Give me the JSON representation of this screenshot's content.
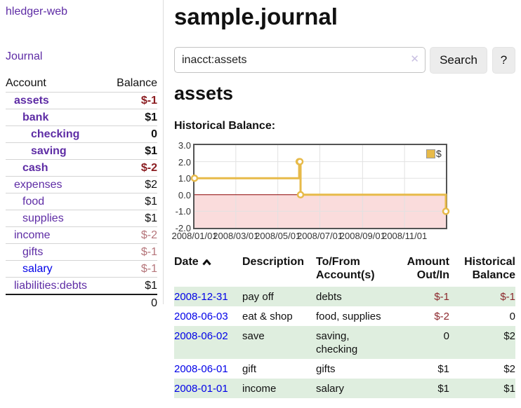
{
  "brand": "hledger-web",
  "nav": {
    "journal": "Journal"
  },
  "sidebar": {
    "header": {
      "account": "Account",
      "balance": "Balance"
    },
    "accounts": [
      {
        "name": "assets",
        "balance": "$-1"
      },
      {
        "name": "bank",
        "balance": "$1"
      },
      {
        "name": "checking",
        "balance": "0"
      },
      {
        "name": "saving",
        "balance": "$1"
      },
      {
        "name": "cash",
        "balance": "$-2"
      },
      {
        "name": "expenses",
        "balance": "$2"
      },
      {
        "name": "food",
        "balance": "$1"
      },
      {
        "name": "supplies",
        "balance": "$1"
      },
      {
        "name": "income",
        "balance": "$-2"
      },
      {
        "name": "gifts",
        "balance": "$-1"
      },
      {
        "name": "salary",
        "balance": "$-1"
      },
      {
        "name": "liabilities:debts",
        "balance": "$1"
      }
    ],
    "total": "0"
  },
  "header": {
    "title": "sample.journal"
  },
  "search": {
    "value": "inacct:assets",
    "clear_icon": "✕",
    "search_label": "Search",
    "help_label": "?"
  },
  "register": {
    "heading": "assets",
    "chart_title": "Historical Balance:",
    "table": {
      "headers": {
        "date": "Date",
        "description": "Description",
        "tofrom": "To/From Account(s)",
        "amount": "Amount Out/In",
        "balance": "Historical Balance"
      },
      "rows": [
        {
          "date": "2008-12-31",
          "description": "pay off",
          "tofrom": "debts",
          "amount": "$-1",
          "balance": "$-1"
        },
        {
          "date": "2008-06-03",
          "description": "eat & shop",
          "tofrom": "food, supplies",
          "amount": "$-2",
          "balance": "0"
        },
        {
          "date": "2008-06-02",
          "description": "save",
          "tofrom": "saving, checking",
          "amount": "0",
          "balance": "$2"
        },
        {
          "date": "2008-06-01",
          "description": "gift",
          "tofrom": "gifts",
          "amount": "$1",
          "balance": "$2"
        },
        {
          "date": "2008-01-01",
          "description": "income",
          "tofrom": "salary",
          "amount": "$1",
          "balance": "$1"
        }
      ]
    }
  },
  "chart_data": {
    "type": "line",
    "step": true,
    "title": "Historical Balance",
    "series": [
      {
        "name": "$",
        "color": "#e7ba49",
        "points": [
          [
            "2008-01-01",
            1
          ],
          [
            "2008-06-01",
            2
          ],
          [
            "2008-06-02",
            2
          ],
          [
            "2008-06-03",
            0
          ],
          [
            "2008-12-31",
            -1
          ]
        ]
      }
    ],
    "x_ticks": [
      "2008/01/01",
      "2008/03/01",
      "2008/05/01",
      "2008/07/01",
      "2008/09/01",
      "2008/11/01"
    ],
    "x_range": [
      "2008-01-01",
      "2008-12-31"
    ],
    "y_ticks": [
      "3.0",
      "2.0",
      "1.0",
      "0.0",
      "-1.0",
      "-2.0"
    ],
    "ylim": [
      -2,
      3
    ],
    "grid": true,
    "legend": {
      "label": "$",
      "position": "top-right"
    },
    "colors": {
      "negative_region": "#fadcdc",
      "zero_line": "#8b0000",
      "gridline": "#e2e2e2",
      "marker_fill": "#ffffff"
    }
  },
  "colors": {
    "link_purple": "#5e2ca5",
    "link_blue": "#0000e8",
    "negative_strong": "#8b1d21",
    "negative_soft": "#b5757a",
    "negative_table": "#8c282d",
    "row_green": "#dfeedf",
    "series_gold": "#e7ba49"
  }
}
